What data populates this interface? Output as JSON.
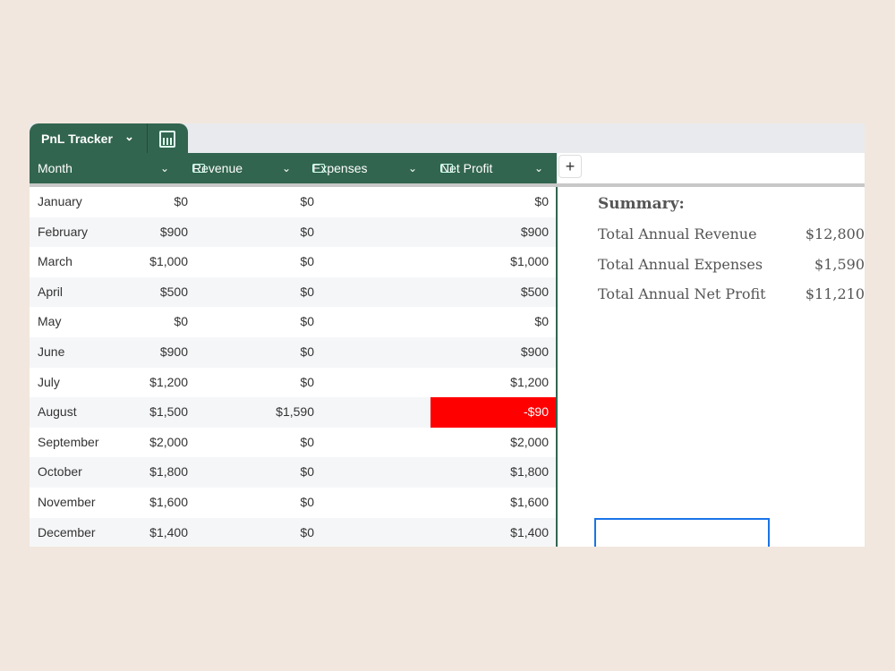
{
  "tab": {
    "name": "PnL Tracker",
    "icon": "calculator-icon"
  },
  "columns": [
    "Month",
    "Revenue",
    "Expenses",
    "Net Profit"
  ],
  "rows": [
    [
      "January",
      "$0",
      "$0",
      "$0"
    ],
    [
      "February",
      "$900",
      "$0",
      "$900"
    ],
    [
      "March",
      "$1,000",
      "$0",
      "$1,000"
    ],
    [
      "April",
      "$500",
      "$0",
      "$500"
    ],
    [
      "May",
      "$0",
      "$0",
      "$0"
    ],
    [
      "June",
      "$900",
      "$0",
      "$900"
    ],
    [
      "July",
      "$1,200",
      "$0",
      "$1,200"
    ],
    [
      "August",
      "$1,500",
      "$1,590",
      "-$90"
    ],
    [
      "September",
      "$2,000",
      "$0",
      "$2,000"
    ],
    [
      "October",
      "$1,800",
      "$0",
      "$1,800"
    ],
    [
      "November",
      "$1,600",
      "$0",
      "$1,600"
    ],
    [
      "December",
      "$1,400",
      "$0",
      "$1,400"
    ]
  ],
  "summary": {
    "title": "Summary:",
    "items": [
      {
        "label": "Total Annual Revenue",
        "value": "$12,800"
      },
      {
        "label": "Total Annual Expenses",
        "value": "$1,590"
      },
      {
        "label": "Total Annual Net Profit",
        "value": "$11,210"
      }
    ]
  },
  "colors": {
    "header": "#32654f",
    "negative": "#ff0000",
    "selection": "#1a73e8"
  }
}
